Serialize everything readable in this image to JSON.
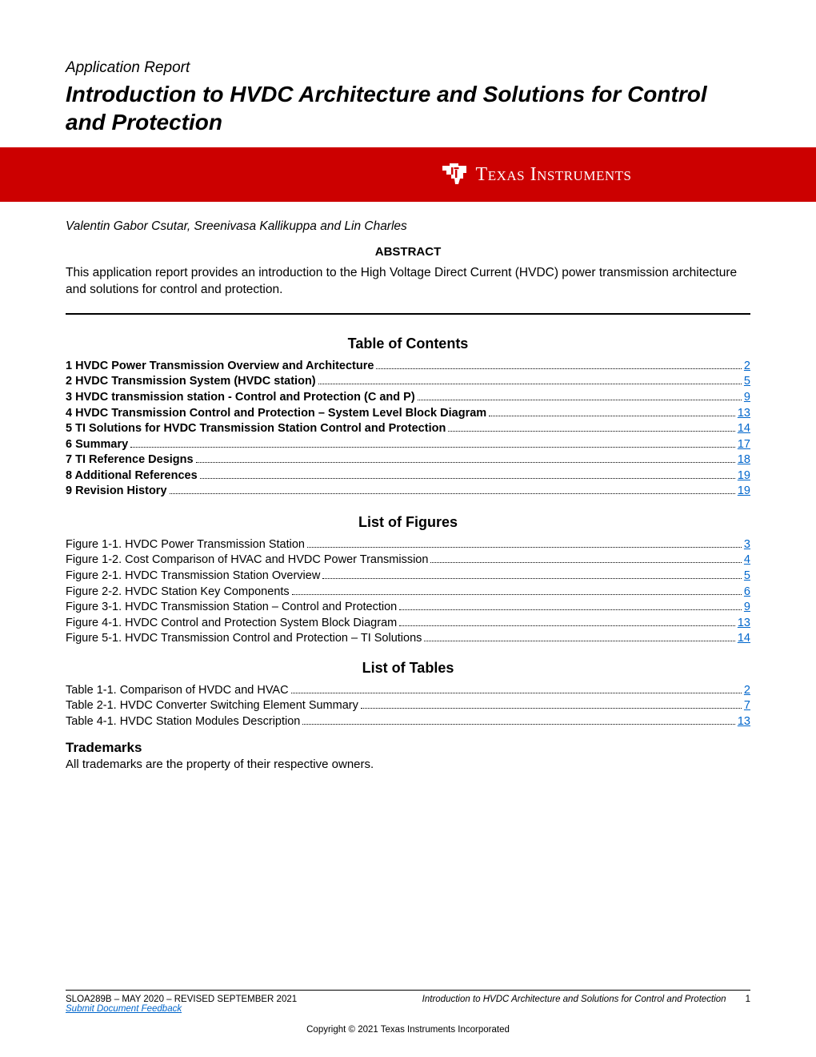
{
  "header": {
    "kicker": "Application Report",
    "title": "Introduction to HVDC Architecture and Solutions for Control and Protection"
  },
  "banner": {
    "logo_text": "Texas Instruments",
    "bg_color": "#cc0000",
    "text_color": "#ffffff"
  },
  "authors": "Valentin Gabor Csutar, Sreenivasa Kallikuppa and Lin Charles",
  "abstract": {
    "heading": "ABSTRACT",
    "text": "This application report provides an introduction to the High Voltage Direct Current (HVDC) power transmission architecture and solutions for control and protection."
  },
  "toc": {
    "heading": "Table of Contents",
    "items": [
      {
        "label": "1 HVDC Power Transmission Overview and Architecture",
        "page": "2"
      },
      {
        "label": "2 HVDC Transmission System (HVDC station)",
        "page": "5"
      },
      {
        "label": "3 HVDC transmission station - Control and Protection (C and P)",
        "page": "9"
      },
      {
        "label": "4 HVDC Transmission Control and Protection – System Level Block Diagram",
        "page": "13"
      },
      {
        "label": "5 TI Solutions for HVDC Transmission Station Control and Protection",
        "page": "14"
      },
      {
        "label": "6 Summary",
        "page": "17"
      },
      {
        "label": "7 TI Reference Designs",
        "page": "18"
      },
      {
        "label": "8 Additional References",
        "page": "19"
      },
      {
        "label": "9 Revision History",
        "page": "19"
      }
    ]
  },
  "lof": {
    "heading": "List of Figures",
    "items": [
      {
        "label": "Figure 1-1. HVDC Power Transmission Station",
        "page": "3"
      },
      {
        "label": "Figure 1-2. Cost Comparison of HVAC and HVDC Power Transmission",
        "page": "4"
      },
      {
        "label": "Figure 2-1. HVDC Transmission Station Overview",
        "page": "5"
      },
      {
        "label": "Figure 2-2. HVDC Station Key Components",
        "page": "6"
      },
      {
        "label": "Figure 3-1. HVDC Transmission Station – Control and Protection",
        "page": "9"
      },
      {
        "label": "Figure 4-1. HVDC Control and Protection System Block Diagram",
        "page": "13"
      },
      {
        "label": "Figure 5-1. HVDC Transmission Control and Protection – TI Solutions",
        "page": "14"
      }
    ]
  },
  "lot": {
    "heading": "List of Tables",
    "items": [
      {
        "label": "Table 1-1. Comparison of HVDC and HVAC",
        "page": "2"
      },
      {
        "label": "Table 2-1. HVDC Converter Switching Element Summary",
        "page": "7"
      },
      {
        "label": "Table 4-1. HVDC Station Modules Description",
        "page": "13"
      }
    ]
  },
  "trademarks": {
    "heading": "Trademarks",
    "text": "All trademarks are the property of their respective owners."
  },
  "footer": {
    "left": "SLOA289B – MAY 2020 – REVISED SEPTEMBER 2021",
    "link": "Submit Document Feedback",
    "center": "Introduction to HVDC Architecture and Solutions for Control and Protection",
    "pagenum": "1",
    "copyright": "Copyright © 2021 Texas Instruments Incorporated"
  },
  "colors": {
    "link": "#0066cc",
    "text": "#000000",
    "banner_bg": "#cc0000"
  }
}
